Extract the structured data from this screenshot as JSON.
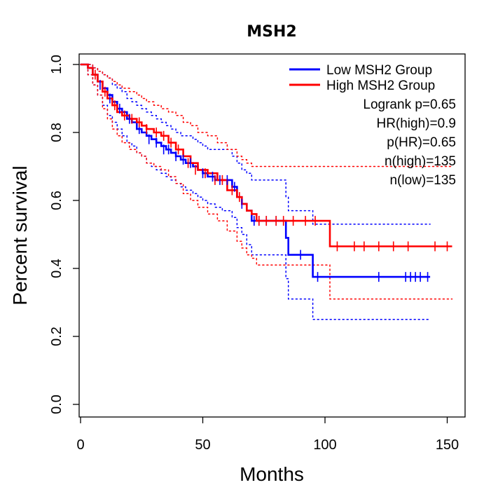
{
  "chart_data": {
    "type": "line",
    "title": "MSH2",
    "xlabel": "Months",
    "ylabel": "Percent survival",
    "xlim": [
      0,
      155
    ],
    "ylim": [
      0,
      1.03
    ],
    "x_ticks": [
      0,
      50,
      100,
      150
    ],
    "y_ticks": [
      0.0,
      0.2,
      0.4,
      0.6,
      0.8,
      1.0
    ],
    "x_tick_labels": [
      "0",
      "50",
      "100",
      "150"
    ],
    "y_tick_labels": [
      "0.0",
      "0.2",
      "0.4",
      "0.6",
      "0.8",
      "1.0"
    ],
    "legend": {
      "position": "top-right",
      "entries": [
        {
          "label": "Low MSH2 Group",
          "color": "#0000ff"
        },
        {
          "label": "High MSH2 Group",
          "color": "#ff0000"
        }
      ]
    },
    "stats": [
      "Logrank p=0.65",
      "HR(high)=0.9",
      "p(HR)=0.65",
      "n(high)=135",
      "n(low)=135"
    ],
    "series": [
      {
        "name": "Low MSH2 Group",
        "color": "#0000ff",
        "x": [
          0,
          3,
          5,
          7,
          9,
          11,
          13,
          15,
          17,
          19,
          21,
          23,
          25,
          27,
          29,
          31,
          33,
          35,
          37,
          39,
          41,
          43,
          46,
          48,
          50,
          52,
          55,
          58,
          62,
          64,
          66,
          68,
          70,
          84,
          85,
          95,
          143
        ],
        "y": [
          1.0,
          0.99,
          0.97,
          0.95,
          0.93,
          0.91,
          0.89,
          0.87,
          0.86,
          0.84,
          0.83,
          0.81,
          0.8,
          0.79,
          0.78,
          0.77,
          0.76,
          0.75,
          0.74,
          0.73,
          0.72,
          0.71,
          0.7,
          0.69,
          0.68,
          0.67,
          0.66,
          0.66,
          0.64,
          0.61,
          0.59,
          0.57,
          0.54,
          0.49,
          0.44,
          0.375,
          0.375
        ],
        "upper": [
          1.0,
          1.0,
          0.99,
          0.98,
          0.97,
          0.96,
          0.94,
          0.93,
          0.92,
          0.9,
          0.89,
          0.88,
          0.87,
          0.86,
          0.85,
          0.84,
          0.83,
          0.82,
          0.81,
          0.8,
          0.79,
          0.79,
          0.78,
          0.77,
          0.76,
          0.75,
          0.75,
          0.75,
          0.73,
          0.71,
          0.69,
          0.68,
          0.66,
          0.61,
          0.57,
          0.53,
          0.53
        ],
        "lower": [
          1.0,
          0.97,
          0.94,
          0.91,
          0.88,
          0.85,
          0.83,
          0.81,
          0.79,
          0.77,
          0.76,
          0.74,
          0.73,
          0.71,
          0.7,
          0.69,
          0.68,
          0.67,
          0.66,
          0.65,
          0.64,
          0.63,
          0.62,
          0.61,
          0.6,
          0.59,
          0.58,
          0.57,
          0.55,
          0.52,
          0.5,
          0.47,
          0.44,
          0.37,
          0.31,
          0.25,
          0.25
        ],
        "censor_x": [
          8,
          12,
          16,
          20,
          24,
          28,
          31,
          34,
          36,
          39,
          42,
          45,
          50,
          54,
          57,
          60,
          63,
          66,
          71,
          73,
          76,
          80,
          90,
          97,
          122,
          133,
          135,
          137,
          139,
          142
        ],
        "censor_y": [
          0.94,
          0.9,
          0.87,
          0.84,
          0.81,
          0.78,
          0.77,
          0.75,
          0.75,
          0.73,
          0.72,
          0.71,
          0.68,
          0.67,
          0.66,
          0.66,
          0.64,
          0.59,
          0.54,
          0.54,
          0.54,
          0.54,
          0.44,
          0.375,
          0.375,
          0.375,
          0.375,
          0.375,
          0.375,
          0.375
        ]
      },
      {
        "name": "High MSH2 Group",
        "color": "#ff0000",
        "x": [
          0,
          3,
          5,
          7,
          9,
          11,
          13,
          15,
          17,
          20,
          23,
          25,
          27,
          30,
          33,
          36,
          39,
          42,
          45,
          48,
          52,
          56,
          60,
          64,
          66,
          68,
          70,
          72,
          102,
          152
        ],
        "y": [
          1.0,
          0.99,
          0.97,
          0.95,
          0.92,
          0.9,
          0.88,
          0.86,
          0.85,
          0.84,
          0.83,
          0.82,
          0.81,
          0.8,
          0.79,
          0.77,
          0.75,
          0.73,
          0.71,
          0.69,
          0.68,
          0.66,
          0.63,
          0.61,
          0.59,
          0.57,
          0.56,
          0.54,
          0.465,
          0.465
        ],
        "upper": [
          1.0,
          1.0,
          0.99,
          0.98,
          0.97,
          0.96,
          0.95,
          0.94,
          0.93,
          0.92,
          0.91,
          0.9,
          0.89,
          0.88,
          0.87,
          0.86,
          0.85,
          0.83,
          0.82,
          0.8,
          0.79,
          0.77,
          0.75,
          0.73,
          0.72,
          0.71,
          0.7,
          0.7,
          0.7,
          0.7
        ],
        "lower": [
          1.0,
          0.97,
          0.94,
          0.91,
          0.87,
          0.84,
          0.81,
          0.79,
          0.77,
          0.75,
          0.74,
          0.73,
          0.71,
          0.7,
          0.69,
          0.67,
          0.65,
          0.62,
          0.6,
          0.58,
          0.56,
          0.54,
          0.51,
          0.48,
          0.46,
          0.44,
          0.43,
          0.41,
          0.31,
          0.31
        ],
        "censor_x": [
          6,
          10,
          14,
          18,
          21,
          24,
          27,
          31,
          34,
          37,
          40,
          44,
          47,
          51,
          55,
          58,
          62,
          65,
          73,
          76,
          80,
          83,
          87,
          92,
          96,
          105,
          112,
          116,
          122,
          128,
          134,
          145,
          150
        ],
        "censor_y": [
          0.97,
          0.92,
          0.88,
          0.85,
          0.84,
          0.83,
          0.81,
          0.8,
          0.79,
          0.77,
          0.75,
          0.71,
          0.69,
          0.68,
          0.66,
          0.66,
          0.63,
          0.61,
          0.54,
          0.54,
          0.54,
          0.54,
          0.54,
          0.54,
          0.54,
          0.465,
          0.465,
          0.465,
          0.465,
          0.465,
          0.465,
          0.465,
          0.465
        ]
      }
    ]
  }
}
